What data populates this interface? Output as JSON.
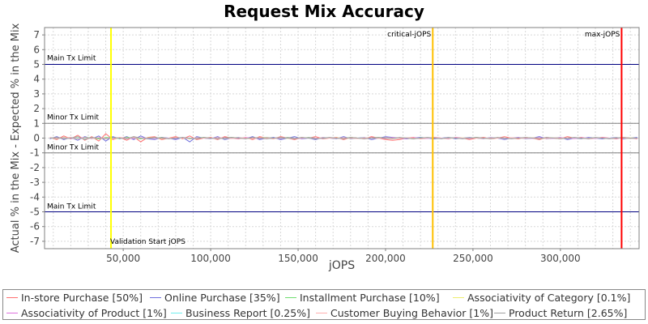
{
  "chart_data": {
    "type": "line",
    "title": "Request Mix Accuracy",
    "xlabel": "jOPS",
    "ylabel": "Actual % in the Mix - Expected % in the Mix",
    "xlim": [
      5000,
      345000
    ],
    "ylim": [
      -7.5,
      7.5
    ],
    "x_ticks": [
      "50,000",
      "100,000",
      "150,000",
      "200,000",
      "250,000",
      "300,000"
    ],
    "x_tick_values": [
      50000,
      100000,
      150000,
      200000,
      250000,
      300000
    ],
    "y_ticks": [
      "7",
      "6",
      "5",
      "4",
      "3",
      "2",
      "1",
      "0",
      "-1",
      "-2",
      "-3",
      "-4",
      "-5",
      "-6",
      "-7"
    ],
    "y_tick_values": [
      7,
      6,
      5,
      4,
      3,
      2,
      1,
      0,
      -1,
      -2,
      -3,
      -4,
      -5,
      -6,
      -7
    ],
    "grid": true,
    "legend_position": "bottom",
    "x": [
      8000,
      12000,
      16000,
      20000,
      24000,
      28000,
      32000,
      36000,
      40000,
      44000,
      48000,
      52000,
      56000,
      60000,
      64000,
      68000,
      72000,
      76000,
      80000,
      84000,
      88000,
      92000,
      96000,
      100000,
      104000,
      108000,
      112000,
      116000,
      120000,
      124000,
      128000,
      132000,
      136000,
      140000,
      144000,
      148000,
      152000,
      156000,
      160000,
      164000,
      168000,
      172000,
      176000,
      180000,
      184000,
      188000,
      192000,
      196000,
      200000,
      204000,
      208000,
      212000,
      216000,
      220000,
      224000,
      228000,
      232000,
      236000,
      240000,
      244000,
      248000,
      252000,
      256000,
      260000,
      264000,
      268000,
      272000,
      276000,
      280000,
      284000,
      288000,
      292000,
      296000,
      300000,
      304000,
      308000,
      312000,
      316000,
      320000,
      324000,
      328000,
      332000,
      336000,
      340000,
      344000
    ],
    "series": [
      {
        "name": "In-store Purchase [50%]",
        "color": "#ff7070",
        "values": [
          0.05,
          -0.1,
          0.15,
          -0.05,
          0.2,
          -0.15,
          0.1,
          -0.2,
          0.3,
          -0.1,
          0.05,
          -0.15,
          0.1,
          -0.25,
          0.05,
          0.1,
          -0.1,
          0.0,
          0.1,
          -0.05,
          0.15,
          -0.1,
          0.0,
          0.05,
          -0.1,
          0.1,
          0.0,
          -0.05,
          0.05,
          -0.1,
          0.1,
          0.0,
          -0.05,
          0.1,
          0.0,
          -0.1,
          0.05,
          0.0,
          0.1,
          -0.05,
          0.0,
          0.05,
          -0.1,
          0.05,
          0.0,
          -0.05,
          0.1,
          0.0,
          -0.1,
          -0.15,
          -0.1,
          0.0,
          0.05,
          -0.05,
          0.0,
          0.05,
          0.0,
          -0.05,
          0.05,
          0.0,
          -0.1,
          0.0,
          0.05,
          -0.05,
          0.0,
          0.1,
          0.0,
          -0.05,
          0.05,
          0.0,
          -0.1,
          0.05,
          0.0,
          -0.05,
          0.1,
          0.0,
          0.05,
          -0.05,
          0.0,
          0.05,
          0.0,
          -0.05,
          0.05,
          0.0,
          -0.05
        ]
      },
      {
        "name": "Online Purchase [35%]",
        "color": "#7070dd",
        "values": [
          -0.05,
          0.1,
          -0.1,
          0.05,
          -0.15,
          0.1,
          -0.05,
          0.15,
          -0.2,
          0.1,
          -0.05,
          0.1,
          -0.1,
          0.15,
          -0.05,
          -0.1,
          0.05,
          0.0,
          -0.1,
          0.05,
          -0.25,
          0.1,
          0.0,
          -0.05,
          0.1,
          -0.1,
          0.0,
          0.05,
          -0.05,
          0.1,
          -0.1,
          0.0,
          0.05,
          -0.1,
          0.0,
          0.1,
          -0.05,
          0.0,
          -0.1,
          0.05,
          0.0,
          -0.05,
          0.1,
          -0.05,
          0.0,
          0.05,
          -0.1,
          0.0,
          0.1,
          0.05,
          0.0,
          -0.05,
          0.0,
          0.05,
          0.0,
          -0.05,
          0.0,
          0.05,
          -0.05,
          0.0,
          0.05,
          0.0,
          -0.05,
          0.05,
          0.0,
          -0.1,
          0.0,
          0.05,
          -0.05,
          0.0,
          0.1,
          -0.05,
          0.0,
          0.05,
          -0.1,
          0.0,
          -0.05,
          0.05,
          0.0,
          -0.05,
          0.0,
          0.05,
          -0.05,
          0.0,
          0.05
        ]
      },
      {
        "name": "Installment Purchase [10%]",
        "color": "#70dd70",
        "values": [
          0.02,
          -0.05,
          0.05,
          0.0,
          -0.05,
          0.05,
          0.0,
          -0.05,
          0.05,
          0.0,
          -0.02,
          0.05,
          0.0,
          -0.05,
          0.02,
          0.0,
          0.05,
          -0.02,
          0.0,
          0.02,
          -0.05,
          0.0,
          0.05,
          0.0,
          -0.02,
          0.02,
          0.05,
          0.0,
          -0.02,
          0.0,
          0.02,
          0.05,
          0.0,
          -0.02,
          0.05,
          0.0,
          -0.02,
          0.05,
          0.0,
          -0.02,
          0.02,
          0.0,
          -0.02,
          0.05,
          0.0,
          -0.02,
          0.02,
          0.05,
          0.0,
          -0.02,
          0.02,
          0.0,
          -0.05,
          0.02,
          0.0,
          0.02,
          -0.02,
          0.0,
          0.02,
          -0.02,
          0.0,
          0.05,
          0.0,
          -0.02,
          0.02,
          0.0,
          -0.02,
          0.02,
          0.0,
          0.02,
          -0.02,
          0.0,
          0.02,
          -0.02,
          0.0,
          0.02,
          0.0,
          -0.02,
          0.02,
          0.0,
          -0.02,
          0.02,
          0.0,
          -0.02,
          0.0
        ]
      },
      {
        "name": "Associativity of Category [0.1%]",
        "color": "#eeee70",
        "values": [
          0.0,
          0.01,
          -0.01,
          0.0,
          0.01,
          -0.01,
          0.0,
          0.01,
          0.0,
          -0.01,
          0.0,
          0.01,
          -0.01,
          0.0,
          0.01,
          0.0,
          -0.01,
          0.0,
          0.01,
          0.0,
          -0.01,
          0.0,
          0.01,
          0.0,
          0.0,
          -0.01,
          0.0,
          0.01,
          0.0,
          -0.01,
          0.0,
          0.01,
          0.0,
          0.0,
          -0.01,
          0.0,
          0.01,
          0.0,
          -0.01,
          0.0,
          0.0,
          0.01,
          0.0,
          -0.01,
          0.0,
          0.01,
          0.0,
          0.0,
          -0.01,
          0.0,
          0.01,
          0.0,
          -0.01,
          0.0,
          0.0,
          0.01,
          0.0,
          -0.01,
          0.0,
          0.01,
          0.0,
          0.0,
          -0.01,
          0.0,
          0.01,
          0.0,
          -0.01,
          0.0,
          0.0,
          0.01,
          0.0,
          -0.01,
          0.0,
          0.01,
          0.0,
          0.0,
          -0.01,
          0.0,
          0.01,
          0.0,
          -0.01,
          0.0,
          0.0,
          0.01,
          0.0
        ]
      },
      {
        "name": "Associativity of Product [1%]",
        "color": "#dd70dd",
        "values": [
          0.02,
          -0.03,
          0.03,
          -0.02,
          0.0,
          0.03,
          -0.03,
          0.02,
          0.0,
          -0.02,
          0.03,
          0.0,
          -0.03,
          0.02,
          0.0,
          -0.02,
          0.02,
          0.0,
          -0.02,
          0.03,
          0.0,
          -0.02,
          0.02,
          0.0,
          -0.03,
          0.02,
          0.0,
          -0.02,
          0.03,
          0.0,
          -0.02,
          0.02,
          0.0,
          -0.02,
          0.02,
          0.0,
          -0.03,
          0.02,
          0.0,
          -0.02,
          0.03,
          0.0,
          -0.02,
          0.02,
          0.0,
          -0.02,
          0.02,
          0.0,
          -0.02,
          0.02,
          0.0,
          -0.03,
          0.02,
          0.0,
          -0.02,
          0.02,
          0.0,
          -0.02,
          0.03,
          0.0,
          -0.02,
          0.02,
          0.0,
          -0.02,
          0.02,
          0.0,
          -0.02,
          0.03,
          0.0,
          -0.02,
          0.02,
          0.0,
          -0.02,
          0.02,
          0.0,
          -0.03,
          0.02,
          0.0,
          -0.02,
          0.02,
          0.0,
          -0.02,
          0.02,
          0.0,
          -0.02
        ]
      },
      {
        "name": "Business Report [0.25%]",
        "color": "#70eeee",
        "values": [
          0.01,
          0.0,
          -0.01,
          0.02,
          0.0,
          -0.02,
          0.01,
          0.0,
          -0.01,
          0.02,
          0.0,
          -0.01,
          0.01,
          0.0,
          -0.02,
          0.01,
          0.0,
          -0.01,
          0.02,
          0.0,
          -0.01,
          0.01,
          0.0,
          -0.01,
          0.01,
          0.0,
          -0.02,
          0.01,
          0.0,
          -0.01,
          0.02,
          0.0,
          -0.01,
          0.01,
          0.0,
          -0.01,
          0.01,
          0.0,
          -0.02,
          0.01,
          0.0,
          -0.01,
          0.01,
          0.0,
          -0.01,
          0.02,
          0.0,
          -0.01,
          0.01,
          0.0,
          -0.01,
          0.01,
          0.0,
          -0.02,
          0.01,
          0.0,
          -0.01,
          0.01,
          0.0,
          -0.01,
          0.02,
          0.0,
          -0.01,
          0.01,
          0.0,
          -0.01,
          0.01,
          0.0,
          -0.02,
          0.01,
          0.0,
          -0.01,
          0.01,
          0.0,
          -0.01,
          0.02,
          0.0,
          -0.01,
          0.01,
          0.0,
          -0.01,
          0.01,
          0.0,
          -0.01,
          0.0
        ]
      },
      {
        "name": "Customer Buying Behavior [1%]",
        "color": "#ffb0b0",
        "values": [
          0.03,
          -0.02,
          0.02,
          0.05,
          -0.05,
          0.03,
          -0.03,
          0.02,
          0.0,
          -0.05,
          0.05,
          -0.02,
          0.03,
          0.0,
          -0.03,
          0.02,
          0.0,
          -0.02,
          0.05,
          0.0,
          -0.03,
          0.02,
          0.0,
          -0.02,
          0.03,
          0.0,
          -0.03,
          0.02,
          0.0,
          -0.02,
          0.03,
          0.0,
          -0.02,
          0.02,
          0.0,
          -0.03,
          0.02,
          0.0,
          -0.02,
          0.03,
          0.0,
          -0.02,
          0.02,
          0.0,
          -0.03,
          0.02,
          0.0,
          -0.02,
          0.03,
          0.0,
          -0.02,
          0.02,
          0.0,
          -0.03,
          0.02,
          0.0,
          -0.02,
          0.03,
          0.0,
          -0.02,
          0.02,
          0.0,
          -0.03,
          0.02,
          0.0,
          -0.02,
          0.03,
          0.0,
          -0.02,
          0.02,
          0.0,
          -0.03,
          0.02,
          0.0,
          -0.02,
          0.03,
          0.0,
          -0.02,
          0.02,
          0.0,
          -0.03,
          0.02,
          0.0,
          -0.02,
          0.0
        ]
      },
      {
        "name": "Product Return [2.65%]",
        "color": "#a0a0a0",
        "values": [
          0.0,
          0.05,
          -0.05,
          0.0,
          0.1,
          -0.1,
          0.05,
          0.0,
          -0.05,
          0.05,
          0.0,
          -0.05,
          0.1,
          0.0,
          -0.05,
          0.05,
          0.0,
          -0.05,
          0.0,
          0.05,
          0.0,
          -0.05,
          0.05,
          0.0,
          -0.05,
          0.0,
          0.05,
          0.0,
          -0.05,
          0.05,
          0.0,
          -0.05,
          0.0,
          0.05,
          0.0,
          -0.05,
          0.05,
          0.0,
          -0.05,
          0.0,
          0.05,
          0.0,
          -0.05,
          0.05,
          0.0,
          -0.05,
          0.0,
          0.05,
          0.0,
          -0.05,
          0.05,
          0.0,
          -0.05,
          0.0,
          0.05,
          0.0,
          -0.05,
          0.05,
          0.0,
          -0.05,
          0.0,
          0.05,
          0.0,
          -0.05,
          0.05,
          0.0,
          -0.05,
          0.0,
          0.05,
          0.0,
          -0.05,
          0.05,
          0.0,
          -0.05,
          0.0,
          0.05,
          0.0,
          -0.05,
          0.05,
          0.0,
          -0.05,
          0.0,
          0.05,
          0.0,
          0.0
        ]
      }
    ],
    "horizontal_lines": [
      {
        "y": 5,
        "label": "Main Tx Limit",
        "color": "#000080"
      },
      {
        "y": 1,
        "label": "Minor Tx Limit",
        "color": "#808080"
      },
      {
        "y": -1,
        "label": "Minor Tx Limit",
        "color": "#808080"
      },
      {
        "y": -5,
        "label": "Main Tx Limit",
        "color": "#000080"
      }
    ],
    "vertical_lines": [
      {
        "x": 43000,
        "label": "Validation Start jOPS",
        "color": "#ffff00",
        "label_position": "bottom"
      },
      {
        "x": 227000,
        "label": "critical-jOPS",
        "color": "#ffc000",
        "label_position": "top"
      },
      {
        "x": 335000,
        "label": "max-jOPS",
        "color": "#ff0000",
        "label_position": "top"
      }
    ]
  }
}
